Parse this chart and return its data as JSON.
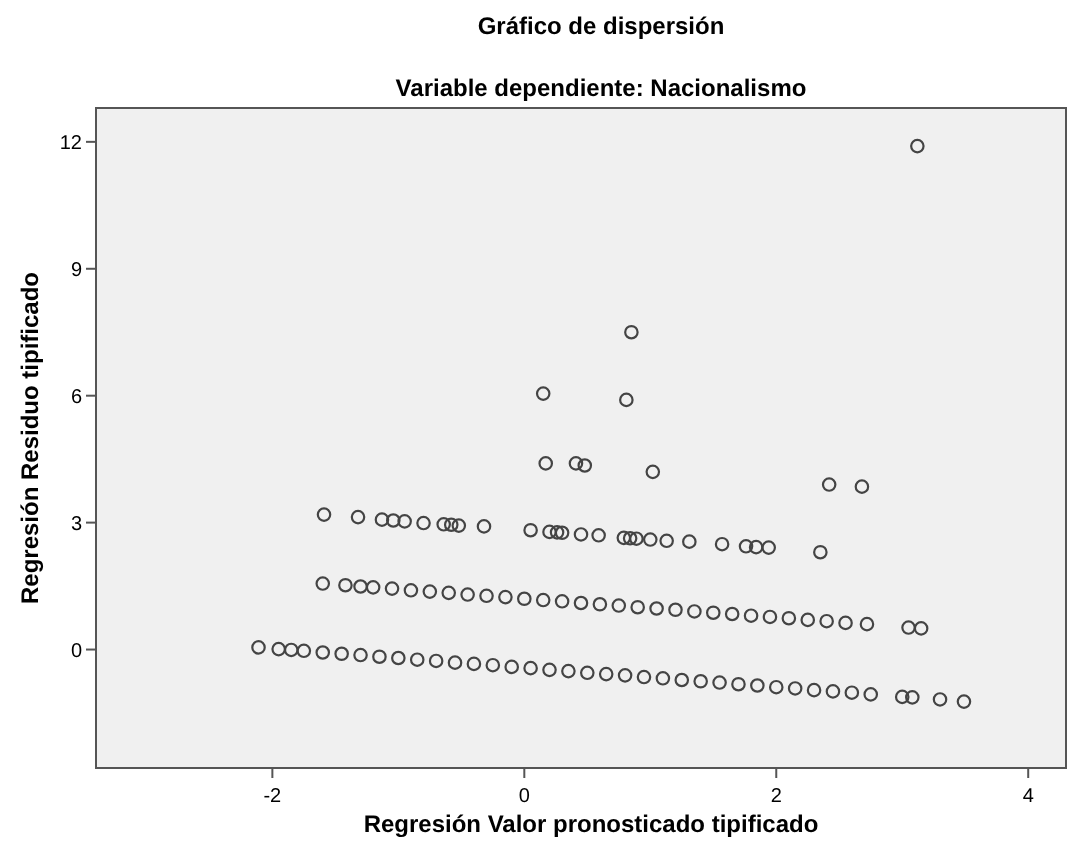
{
  "chart_data": {
    "type": "scatter",
    "title": "Gráfico de dispersión",
    "subtitle": "Variable dependiente: Nacionalismo",
    "xlabel": "Regresión Valor pronosticado tipificado",
    "ylabel": "Regresión Residuo tipificado",
    "xlim": [
      -3.4,
      4.3
    ],
    "ylim": [
      -2.8,
      12.8
    ],
    "xticks": [
      -2,
      0,
      2,
      4
    ],
    "yticks": [
      0,
      3,
      6,
      9,
      12
    ],
    "grid": false,
    "marker": "circle",
    "series": [
      {
        "color": "#444444",
        "x": [
          -2.11,
          -1.95,
          -1.85,
          -1.75,
          -1.6,
          -1.45,
          -1.3,
          -1.15,
          -1.0,
          -0.85,
          -0.7,
          -0.55,
          -0.4,
          -0.25,
          -0.1,
          0.05,
          0.2,
          0.35,
          0.5,
          0.65,
          0.8,
          0.95,
          1.1,
          1.25,
          1.4,
          1.55,
          1.7,
          1.85,
          2.0,
          2.15,
          2.3,
          2.45,
          2.6,
          2.75,
          3.0,
          3.08,
          3.3,
          3.49,
          -1.6,
          -1.42,
          -1.3,
          -1.2,
          -1.05,
          -0.9,
          -0.75,
          -0.6,
          -0.45,
          -0.3,
          -0.15,
          0.0,
          0.15,
          0.3,
          0.45,
          0.6,
          0.75,
          0.9,
          1.05,
          1.2,
          1.35,
          1.5,
          1.65,
          1.8,
          1.95,
          2.1,
          2.25,
          2.4,
          2.55,
          2.72,
          3.05,
          3.15,
          -1.59,
          -1.32,
          -1.13,
          -1.04,
          -0.95,
          -0.8,
          -0.64,
          -0.58,
          -0.52,
          -0.32,
          0.05,
          0.2,
          0.26,
          0.3,
          0.45,
          0.59,
          0.79,
          0.84,
          0.89,
          1.0,
          1.13,
          1.31,
          1.57,
          1.76,
          1.84,
          1.94,
          2.35,
          3.12,
          0.85,
          0.81,
          0.15,
          0.17,
          0.41,
          0.48,
          1.02,
          2.42,
          2.68
        ],
        "values": [
          0.05,
          0.01,
          -0.01,
          -0.03,
          -0.07,
          -0.1,
          -0.13,
          -0.17,
          -0.2,
          -0.24,
          -0.27,
          -0.31,
          -0.34,
          -0.37,
          -0.41,
          -0.44,
          -0.48,
          -0.51,
          -0.55,
          -0.58,
          -0.61,
          -0.65,
          -0.68,
          -0.72,
          -0.75,
          -0.78,
          -0.82,
          -0.85,
          -0.89,
          -0.92,
          -0.96,
          -0.99,
          -1.02,
          -1.06,
          -1.12,
          -1.13,
          -1.18,
          -1.23,
          1.56,
          1.52,
          1.49,
          1.47,
          1.44,
          1.4,
          1.37,
          1.34,
          1.3,
          1.27,
          1.24,
          1.2,
          1.17,
          1.14,
          1.1,
          1.07,
          1.04,
          1.0,
          0.97,
          0.94,
          0.9,
          0.87,
          0.84,
          0.8,
          0.77,
          0.74,
          0.7,
          0.67,
          0.63,
          0.6,
          0.52,
          0.5,
          3.19,
          3.13,
          3.07,
          3.05,
          3.03,
          2.99,
          2.96,
          2.95,
          2.93,
          2.91,
          2.82,
          2.78,
          2.77,
          2.76,
          2.72,
          2.7,
          2.64,
          2.63,
          2.62,
          2.6,
          2.57,
          2.55,
          2.49,
          2.44,
          2.42,
          2.41,
          2.3,
          11.9,
          7.5,
          5.9,
          6.05,
          4.4,
          4.4,
          4.35,
          4.2,
          3.9,
          3.85
        ]
      }
    ]
  }
}
